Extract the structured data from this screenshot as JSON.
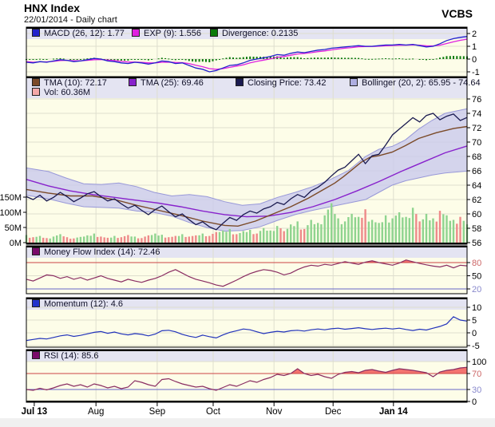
{
  "header": {
    "title": "HNX Index",
    "subtitle": "22/01/2014 - Daily chart",
    "brand": "VCBS"
  },
  "colors": {
    "bg_plot": "#FDFDE8",
    "legend_bg": "#E4E4F2",
    "grid": "#DEDECE",
    "border": "#000000",
    "macd_line": "#2222CC",
    "exp_line": "#E020E0",
    "divergence": "#0A7A0A",
    "closing": "#1A1A50",
    "tma10": "#7B4A28",
    "tma25": "#8822CC",
    "boll_fill": "#C9C9EC",
    "boll_edge": "#9898D8",
    "vol_up": "#8FD48F",
    "vol_down": "#EE8A8A",
    "mfi_line": "#8A2D62",
    "mom_line": "#2233BB",
    "rsi_line": "#8A2D62",
    "ref_red": "#CC4444",
    "ref_blue": "#6666C8",
    "tick_red": "#CC6666",
    "tick_blue": "#8888CC",
    "fill_red": "#F05050",
    "fill_blue": "#5050D0"
  },
  "x_axis": {
    "labels": [
      {
        "text": "Jul 13",
        "f": 0.018,
        "bold": true,
        "grid": false
      },
      {
        "text": "Aug",
        "f": 0.158,
        "bold": false,
        "grid": true
      },
      {
        "text": "Sep",
        "f": 0.297,
        "bold": false,
        "grid": true
      },
      {
        "text": "Oct",
        "f": 0.424,
        "bold": false,
        "grid": true
      },
      {
        "text": "Nov",
        "f": 0.562,
        "bold": false,
        "grid": true
      },
      {
        "text": "Dec",
        "f": 0.696,
        "bold": false,
        "grid": true
      },
      {
        "text": "Jan 14",
        "f": 0.833,
        "bold": true,
        "grid": true
      }
    ]
  },
  "chart_data": [
    {
      "panel": "macd",
      "type": "line",
      "legend": [
        {
          "label": "MACD (26, 12): 1.77",
          "color": "#2222CC"
        },
        {
          "label": "EXP (9): 1.556",
          "color": "#E020E0"
        },
        {
          "label": "Divergence: 0.2135",
          "color": "#0A7A0A"
        }
      ],
      "y_ticks": [
        {
          "v": 2,
          "t": "2"
        },
        {
          "v": 1,
          "t": "1"
        },
        {
          "v": 0,
          "t": "0"
        },
        {
          "v": -1,
          "t": "-1"
        }
      ],
      "series": [
        {
          "name": "MACD",
          "color": "#2222CC",
          "values": [
            -0.25,
            -0.3,
            -0.2,
            -0.25,
            -0.15,
            -0.05,
            -0.1,
            -0.2,
            -0.15,
            -0.05,
            0.05,
            0.0,
            -0.15,
            -0.2,
            -0.3,
            -0.35,
            -0.25,
            -0.3,
            -0.4,
            -0.3,
            -0.15,
            -0.2,
            -0.35,
            -0.3,
            -0.5,
            -0.7,
            -0.8,
            -1.0,
            -0.9,
            -0.7,
            -0.5,
            -0.45,
            -0.3,
            -0.1,
            0.0,
            0.1,
            0.2,
            0.35,
            0.3,
            0.45,
            0.55,
            0.5,
            0.6,
            0.7,
            0.75,
            0.85,
            0.9,
            0.95,
            1.0,
            1.05,
            1.0,
            1.0,
            1.05,
            1.1,
            1.1,
            1.15,
            1.1,
            1.15,
            1.05,
            0.95,
            1.0,
            1.2,
            1.45,
            1.6,
            1.7,
            1.77
          ]
        },
        {
          "name": "EXP",
          "color": "#E020E0",
          "values": [
            -0.2,
            -0.25,
            -0.22,
            -0.22,
            -0.18,
            -0.12,
            -0.1,
            -0.14,
            -0.14,
            -0.1,
            -0.05,
            -0.04,
            -0.08,
            -0.12,
            -0.18,
            -0.23,
            -0.24,
            -0.26,
            -0.3,
            -0.3,
            -0.25,
            -0.24,
            -0.27,
            -0.28,
            -0.35,
            -0.48,
            -0.6,
            -0.75,
            -0.8,
            -0.75,
            -0.65,
            -0.55,
            -0.45,
            -0.3,
            -0.18,
            -0.08,
            0.02,
            0.14,
            0.2,
            0.3,
            0.4,
            0.44,
            0.5,
            0.58,
            0.64,
            0.72,
            0.79,
            0.85,
            0.9,
            0.96,
            0.98,
            0.99,
            1.01,
            1.04,
            1.06,
            1.09,
            1.09,
            1.11,
            1.09,
            1.04,
            1.03,
            1.09,
            1.22,
            1.35,
            1.47,
            1.556
          ]
        }
      ],
      "bar_series": {
        "name": "Divergence",
        "color": "#0A7A0A",
        "derive": "MACD minus EXP",
        "end_value": 0.2135
      }
    },
    {
      "panel": "price",
      "type": "line+band+volume",
      "legend": [
        {
          "label": "TMA (10): 72.17",
          "color": "#7B4A28"
        },
        {
          "label": "TMA (25): 69.46",
          "color": "#8822CC"
        },
        {
          "label": "Closing Price: 73.42",
          "color": "#1A1A50"
        },
        {
          "label": "Bollinger (20, 2): 65.95 - 74.64",
          "color": "#AEAEE0"
        },
        {
          "label": "Vol: 60.36M",
          "color": "#F4A8A8"
        }
      ],
      "y_ticks": [
        {
          "v": 76,
          "t": "76"
        },
        {
          "v": 74,
          "t": "74"
        },
        {
          "v": 72,
          "t": "72"
        },
        {
          "v": 70,
          "t": "70"
        },
        {
          "v": 68,
          "t": "68"
        },
        {
          "v": 66,
          "t": "66"
        },
        {
          "v": 64,
          "t": "64"
        },
        {
          "v": 62,
          "t": "62"
        },
        {
          "v": 60,
          "t": "60"
        },
        {
          "v": 58,
          "t": "58"
        },
        {
          "v": 56,
          "t": "56"
        }
      ],
      "volume_ticks": [
        {
          "v": 150,
          "t": "150M"
        },
        {
          "v": 100,
          "t": "100M"
        },
        {
          "v": 50,
          "t": "50M"
        },
        {
          "v": 0,
          "t": "0M"
        }
      ],
      "closing": {
        "name": "Closing Price",
        "color": "#1A1A50",
        "values": [
          62.4,
          62.0,
          62.6,
          61.8,
          62.3,
          63.0,
          62.4,
          61.7,
          62.2,
          62.8,
          63.1,
          62.4,
          61.8,
          62.1,
          61.4,
          60.8,
          61.2,
          60.5,
          59.9,
          60.6,
          61.1,
          60.3,
          59.6,
          60.0,
          59.2,
          58.5,
          58.9,
          58.2,
          57.8,
          58.7,
          59.5,
          59.1,
          59.9,
          60.4,
          60.1,
          60.7,
          61.0,
          61.6,
          61.3,
          62.1,
          62.7,
          62.3,
          63.2,
          63.7,
          64.4,
          65.3,
          66.1,
          66.5,
          67.4,
          68.3,
          67.0,
          68.1,
          68.3,
          69.6,
          71.0,
          71.8,
          72.6,
          73.4,
          72.8,
          73.7,
          74.0,
          73.1,
          73.6,
          73.9,
          73.0,
          73.42
        ]
      },
      "tma10": {
        "name": "TMA (10)",
        "color": "#7B4A28",
        "x": [
          0,
          0.05,
          0.1,
          0.15,
          0.2,
          0.25,
          0.3,
          0.35,
          0.4,
          0.45,
          0.48,
          0.52,
          0.56,
          0.6,
          0.64,
          0.68,
          0.7,
          0.72,
          0.74,
          0.76,
          0.78,
          0.8,
          0.83,
          0.86,
          0.89,
          0.93,
          0.97,
          1.0
        ],
        "values": [
          63.4,
          62.9,
          62.5,
          62.5,
          62.0,
          61.2,
          60.5,
          59.8,
          59.0,
          58.4,
          58.3,
          59.0,
          60.0,
          61.0,
          62.2,
          63.6,
          64.3,
          65.2,
          66.2,
          67.2,
          67.9,
          68.1,
          68.6,
          69.5,
          70.5,
          71.3,
          71.9,
          72.17
        ]
      },
      "tma25": {
        "name": "TMA (25)",
        "color": "#8822CC",
        "x": [
          0,
          0.05,
          0.1,
          0.15,
          0.2,
          0.25,
          0.3,
          0.35,
          0.4,
          0.45,
          0.5,
          0.55,
          0.6,
          0.65,
          0.7,
          0.75,
          0.8,
          0.85,
          0.9,
          0.95,
          1.0
        ],
        "values": [
          64.8,
          63.9,
          63.2,
          62.7,
          62.3,
          61.9,
          61.5,
          61.0,
          60.4,
          59.9,
          59.6,
          59.7,
          60.2,
          61.0,
          62.0,
          63.2,
          64.5,
          65.9,
          67.2,
          68.5,
          69.46
        ]
      },
      "bollinger": {
        "name": "Bollinger (20, 2)",
        "range": [
          65.95,
          74.64
        ],
        "x": [
          0,
          0.05,
          0.09,
          0.13,
          0.17,
          0.21,
          0.25,
          0.29,
          0.33,
          0.37,
          0.41,
          0.45,
          0.49,
          0.53,
          0.57,
          0.61,
          0.65,
          0.69,
          0.73,
          0.77,
          0.8,
          0.83,
          0.86,
          0.89,
          0.92,
          0.95,
          1.0
        ],
        "upper": [
          66.4,
          65.9,
          65.0,
          64.2,
          64.1,
          64.3,
          63.8,
          63.0,
          62.5,
          62.7,
          62.4,
          61.7,
          61.2,
          61.4,
          62.3,
          63.0,
          63.8,
          64.8,
          66.0,
          68.0,
          69.0,
          69.4,
          70.3,
          71.8,
          73.0,
          74.0,
          74.64
        ],
        "lower": [
          62.6,
          62.1,
          61.5,
          61.0,
          60.9,
          60.8,
          60.4,
          60.2,
          59.7,
          58.8,
          58.1,
          57.6,
          57.7,
          58.2,
          59.1,
          59.9,
          60.5,
          61.0,
          61.5,
          62.0,
          63.0,
          64.0,
          64.6,
          65.0,
          65.4,
          65.7,
          65.95
        ]
      },
      "volume": {
        "name": "Vol",
        "last_value": "60.36M",
        "values_millions": [
          25,
          18,
          22,
          15,
          20,
          28,
          18,
          14,
          19,
          24,
          30,
          20,
          16,
          22,
          18,
          25,
          20,
          15,
          24,
          30,
          26,
          18,
          22,
          28,
          20,
          24,
          30,
          22,
          35,
          40,
          45,
          28,
          38,
          42,
          30,
          48,
          40,
          55,
          38,
          60,
          70,
          45,
          75,
          65,
          90,
          130,
          80,
          70,
          95,
          85,
          110,
          75,
          65,
          90,
          80,
          100,
          85,
          115,
          70,
          95,
          80,
          105,
          90,
          75,
          85,
          60.36
        ]
      }
    },
    {
      "panel": "mfi",
      "type": "line",
      "legend": [
        {
          "label": "Money Flow Index (14): 72.46",
          "color": "#7A0A6A"
        }
      ],
      "y_ticks": [
        {
          "v": 80,
          "t": "80",
          "c": "red"
        },
        {
          "v": 50,
          "t": "50"
        },
        {
          "v": 20,
          "t": "20",
          "c": "blue"
        }
      ],
      "ref_lines": [
        {
          "v": 80,
          "c": "red"
        },
        {
          "v": 20,
          "c": "blue"
        }
      ],
      "values": [
        42,
        38,
        45,
        52,
        50,
        44,
        48,
        42,
        46,
        40,
        45,
        50,
        44,
        40,
        36,
        42,
        38,
        35,
        40,
        44,
        50,
        58,
        64,
        56,
        48,
        42,
        38,
        34,
        29,
        26,
        33,
        40,
        48,
        55,
        60,
        64,
        62,
        58,
        52,
        56,
        64,
        70,
        74,
        72,
        76,
        74,
        78,
        82,
        79,
        76,
        81,
        84,
        80,
        77,
        74,
        79,
        86,
        82,
        78,
        75,
        72,
        70,
        74,
        68,
        74,
        72.46
      ]
    },
    {
      "panel": "momentum",
      "type": "line",
      "legend": [
        {
          "label": "Momentum (12): 4.6",
          "color": "#2233CC"
        }
      ],
      "y_ticks": [
        {
          "v": 10,
          "t": "10"
        },
        {
          "v": 5,
          "t": "5"
        },
        {
          "v": 0,
          "t": "0"
        },
        {
          "v": -5,
          "t": "-5"
        }
      ],
      "values": [
        -3.0,
        -2.6,
        -2.2,
        -2.4,
        -1.8,
        -1.2,
        -0.8,
        -1.4,
        -1.0,
        -0.4,
        0.2,
        0.5,
        -0.2,
        0.3,
        -0.4,
        -0.8,
        -0.3,
        -0.6,
        -1.2,
        -0.5,
        0.8,
        1.0,
        0.4,
        -0.6,
        -1.3,
        -1.8,
        -0.9,
        -1.5,
        -2.0,
        -0.8,
        0.2,
        0.8,
        1.5,
        1.2,
        0.4,
        -0.3,
        0.2,
        0.6,
        0.3,
        0.8,
        1.0,
        0.7,
        1.2,
        1.5,
        1.2,
        1.6,
        1.8,
        1.4,
        1.7,
        2.0,
        1.6,
        1.3,
        1.6,
        1.8,
        1.5,
        1.8,
        1.3,
        0.9,
        1.4,
        1.1,
        1.8,
        2.5,
        3.5,
        6.3,
        5.0,
        4.6
      ]
    },
    {
      "panel": "rsi",
      "type": "line",
      "legend": [
        {
          "label": "RSI (14): 85.6",
          "color": "#7A0A6A"
        }
      ],
      "y_ticks": [
        {
          "v": 100,
          "t": "100"
        },
        {
          "v": 70,
          "t": "70",
          "c": "red"
        },
        {
          "v": 30,
          "t": "30",
          "c": "blue"
        },
        {
          "v": 0,
          "t": "0"
        }
      ],
      "ref_lines": [
        {
          "v": 70,
          "c": "red"
        },
        {
          "v": 30,
          "c": "blue"
        }
      ],
      "values": [
        30,
        28,
        33,
        29,
        34,
        40,
        44,
        38,
        42,
        36,
        44,
        40,
        34,
        38,
        32,
        36,
        52,
        48,
        42,
        38,
        55,
        57,
        50,
        44,
        40,
        36,
        38,
        32,
        28,
        35,
        42,
        38,
        45,
        52,
        48,
        55,
        60,
        68,
        65,
        70,
        82,
        70,
        65,
        68,
        62,
        58,
        68,
        73,
        75,
        72,
        78,
        80,
        76,
        73,
        78,
        82,
        80,
        78,
        75,
        72,
        62,
        74,
        78,
        80,
        84,
        85.6
      ]
    }
  ]
}
